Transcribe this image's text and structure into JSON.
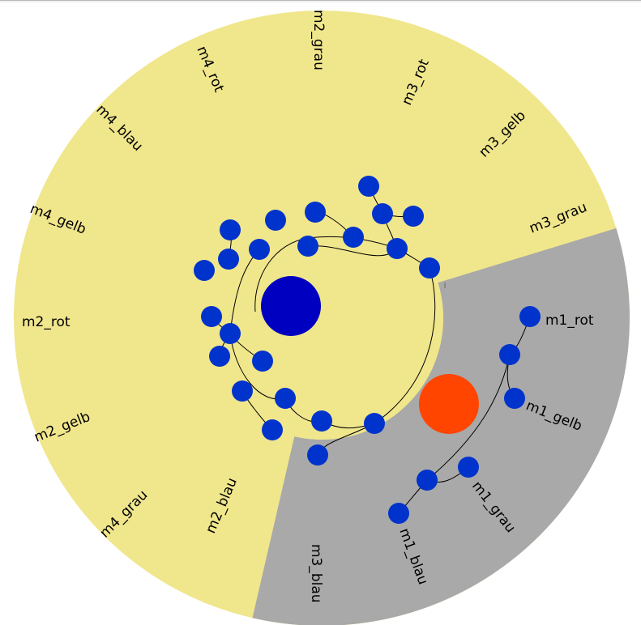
{
  "colors": {
    "outer_ring": "#f0e68c",
    "selected_sector": "#a9a9a9",
    "node": "#0033cc",
    "root_node": "#0000c0",
    "focus_node": "#ff4500",
    "link": "#000000",
    "label": "#000000"
  },
  "labels": [
    "m1_rot",
    "m1_gelb",
    "m1_grau",
    "m1_blau",
    "m3_blau",
    "m2_blau",
    "m4_grau",
    "m2_gelb",
    "m2_rot",
    "m4_gelb",
    "m4_blau",
    "m4_rot",
    "m2_grau",
    "m3_rot",
    "m3_gelb",
    "m3_grau"
  ],
  "selected_group": [
    "m1_rot",
    "m1_gelb",
    "m1_grau",
    "m1_blau"
  ]
}
